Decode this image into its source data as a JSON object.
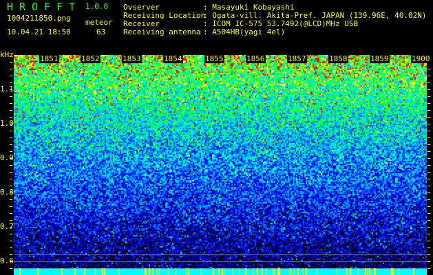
{
  "app": {
    "title": "H R O F F T",
    "version": "1.0.0"
  },
  "file": {
    "name": "1004211850.png",
    "datetime": "10.04.21 18:50"
  },
  "meteor": {
    "label": "meteor",
    "count": "63"
  },
  "info": [
    {
      "key": "Ovserver",
      "value": ": Masayuki Kobayashi"
    },
    {
      "key": "Receiving Location",
      "value": ": Ogata-vill. Akita-Pref. JAPAN (139.96E, 40.02N)"
    },
    {
      "key": "Receiver",
      "value": ": ICOM IC-575 53.7492(@LCD)MHz USB"
    },
    {
      "key": "Receiving antenna",
      "value": ": A504HB(yagi 4el)"
    }
  ],
  "spectrogram": {
    "unit": "kHz",
    "freq_labels": [
      "1.1",
      "1.0",
      "0.9",
      "0.8",
      "0.7",
      "0.6"
    ],
    "time_labels": [
      "1851",
      "1852",
      "1853",
      "1854",
      "1855",
      "1856",
      "1857",
      "1858",
      "1859",
      "1900"
    ],
    "colors": {
      "label": "#ffff00",
      "baseline": "#00ffff",
      "marker": "#808080"
    }
  }
}
